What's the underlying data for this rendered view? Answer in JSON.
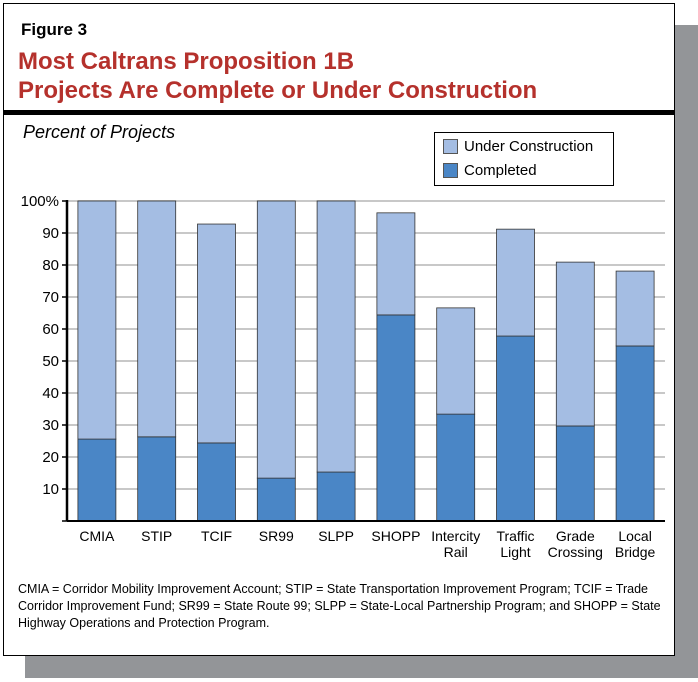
{
  "figure_label": "Figure 3",
  "title_lines": [
    "Most Caltrans Proposition 1B",
    "Projects Are Complete or Under Construction"
  ],
  "footnote": "CMIA = Corridor Mobility Improvement Account; STIP = State Transportation Improvement Program; TCIF = Trade Corridor Improvement Fund; SR99 = State Route 99; SLPP = State-Local Partnership Program; and SHOPP = State Highway Operations and Protection Program.",
  "chart_data": {
    "type": "bar",
    "stacked": true,
    "ylabel": "Percent of Projects",
    "ylim": [
      0,
      100
    ],
    "yticks": [
      "",
      "10",
      "20",
      "30",
      "40",
      "50",
      "60",
      "70",
      "80",
      "90",
      "100%"
    ],
    "grid": true,
    "legend_placement": "top-right",
    "categories": [
      [
        "CMIA"
      ],
      [
        "STIP"
      ],
      [
        "TCIF"
      ],
      [
        "SR99"
      ],
      [
        "SLPP"
      ],
      [
        "SHOPP"
      ],
      [
        "Intercity",
        "Rail"
      ],
      [
        "Traffic",
        "Light"
      ],
      [
        "Grade",
        "Crossing"
      ],
      [
        "Local",
        "Bridge"
      ]
    ],
    "series": [
      {
        "name": "Completed",
        "color": "#4a86c6",
        "values": [
          25.6,
          26.3,
          24.4,
          13.4,
          15.3,
          64.4,
          33.4,
          57.8,
          29.7,
          54.7
        ]
      },
      {
        "name": "Under Construction",
        "color": "#a4bde3",
        "values": [
          74.4,
          73.7,
          68.4,
          86.6,
          84.7,
          31.9,
          33.2,
          33.4,
          51.2,
          23.4
        ]
      }
    ]
  }
}
